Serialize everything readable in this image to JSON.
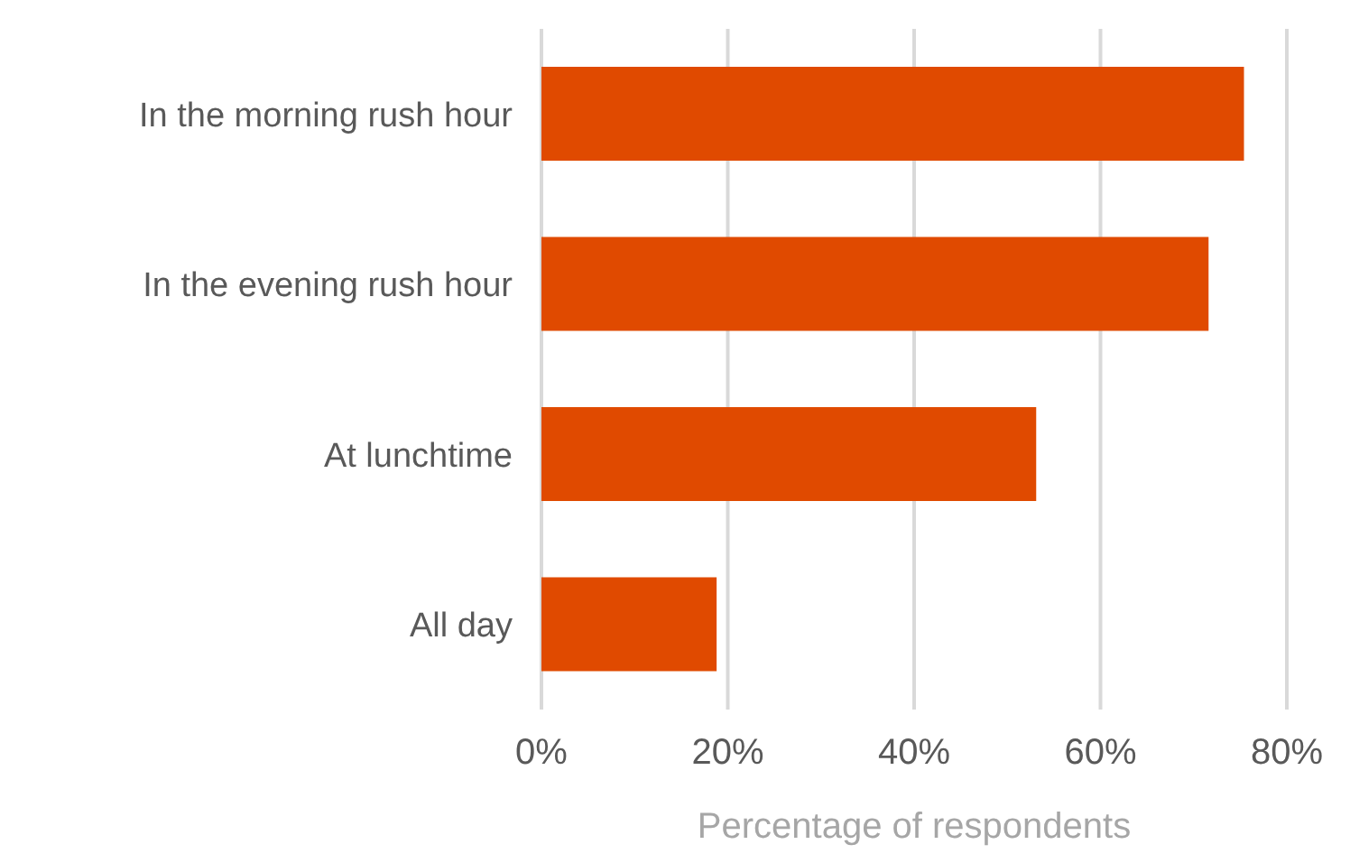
{
  "chart_data": {
    "type": "bar",
    "orientation": "horizontal",
    "xlabel": "Percentage of respondents",
    "categories": [
      "In the morning rush hour",
      "In the evening rush hour",
      "At lunchtime",
      "All day"
    ],
    "values": [
      75.4,
      71.6,
      53.1,
      18.8
    ],
    "color": "#e04a00",
    "xlim": [
      0,
      80
    ],
    "xticks": [
      {
        "value": 0,
        "label": "0%"
      },
      {
        "value": 20,
        "label": "20%"
      },
      {
        "value": 40,
        "label": "40%"
      },
      {
        "value": 60,
        "label": "60%"
      },
      {
        "value": 80,
        "label": "80%"
      }
    ],
    "grid": "x",
    "legend": false
  }
}
